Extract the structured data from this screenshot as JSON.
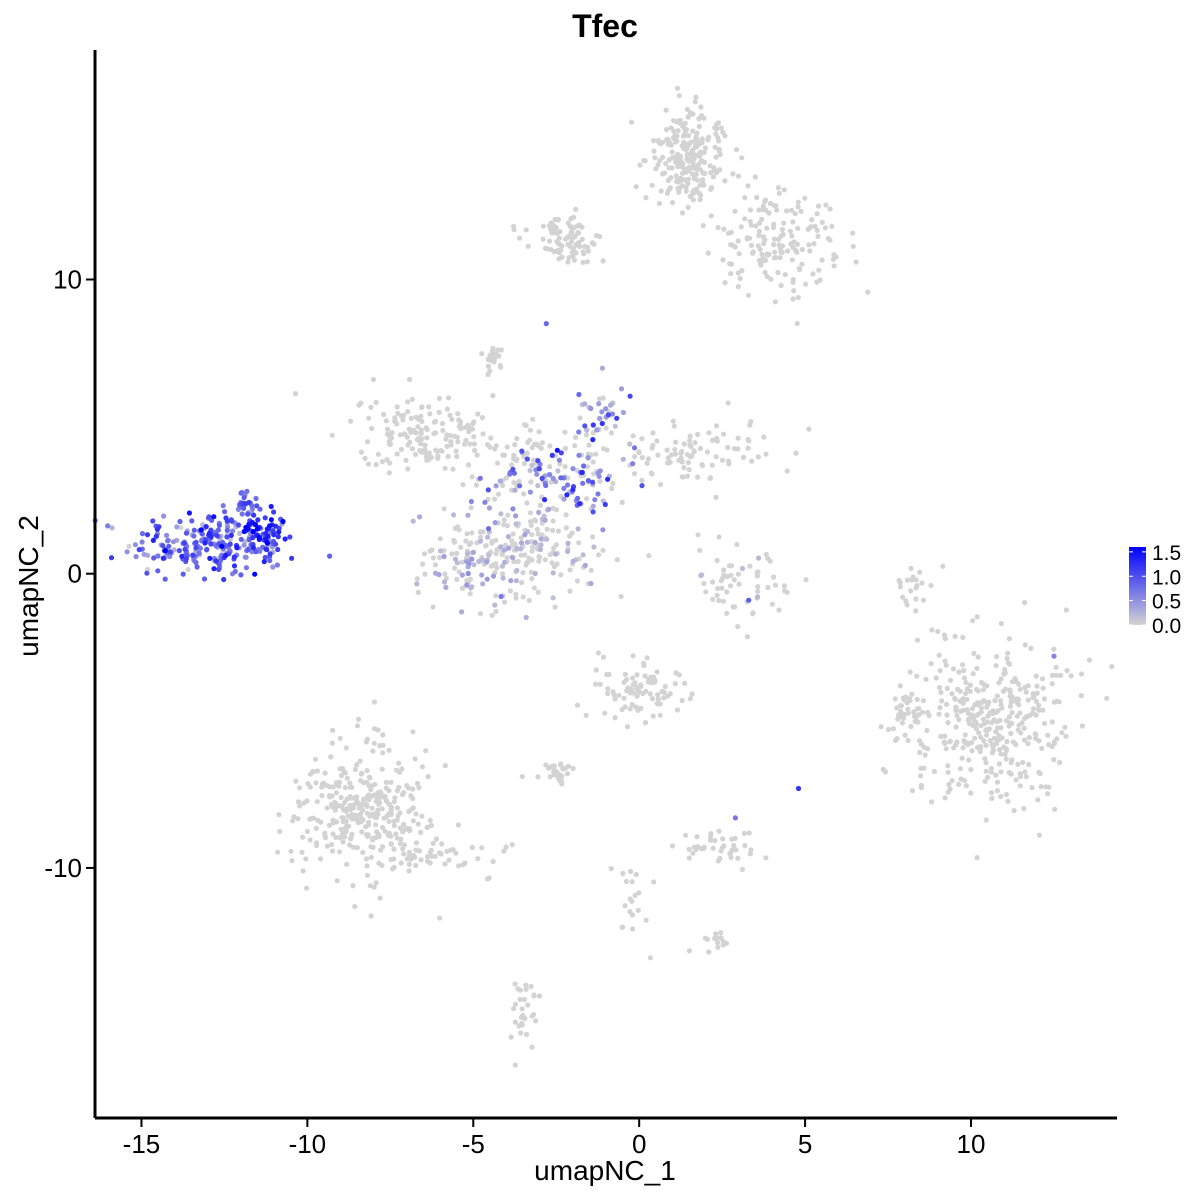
{
  "chart_data": {
    "type": "scatter",
    "title": "Tfec",
    "xlabel": "umapNC_1",
    "ylabel": "umapNC_2",
    "xlim": [
      -16.4,
      14.4
    ],
    "ylim": [
      -18.5,
      17.8
    ],
    "x_ticks": [
      -15,
      -10,
      -5,
      0,
      5,
      10
    ],
    "x_tick_labels": [
      "-15",
      "-10",
      "-5",
      "0",
      "5",
      "10"
    ],
    "y_ticks": [
      -10,
      0,
      10
    ],
    "y_tick_labels": [
      "-10",
      "0",
      "10"
    ],
    "grid": false,
    "legend": {
      "position": "right",
      "type": "colorbar",
      "min": 0.0,
      "max": 1.6,
      "breaks": [
        0.0,
        0.5,
        1.0,
        1.5
      ],
      "break_labels": [
        "0.0",
        "0.5",
        "1.0",
        "1.5"
      ],
      "low_color": "#d3d3d3",
      "high_color": "#0000ff"
    },
    "clusters": [
      {
        "id": "c1",
        "n": 260,
        "cx": -12.8,
        "cy": 1.0,
        "sx": 1.25,
        "sy": 0.55,
        "expr": 0.75,
        "expr_sd": 0.35
      },
      {
        "id": "c1b",
        "n": 40,
        "cx": -11.5,
        "cy": 1.4,
        "sx": 0.35,
        "sy": 0.25,
        "expr": 1.35,
        "expr_sd": 0.2
      },
      {
        "id": "c1c",
        "n": 25,
        "cx": -11.8,
        "cy": 2.3,
        "sx": 0.25,
        "sy": 0.25,
        "expr": 0.9,
        "expr_sd": 0.3
      },
      {
        "id": "c2",
        "n": 150,
        "cx": -6.5,
        "cy": 4.8,
        "sx": 1.0,
        "sy": 0.6,
        "expr": 0,
        "expr_sd": 0
      },
      {
        "id": "c3",
        "n": 200,
        "cx": -3.5,
        "cy": 0.8,
        "sx": 1.3,
        "sy": 1.0,
        "expr": 0.05,
        "expr_sd": 0.15
      },
      {
        "id": "c3b",
        "n": 80,
        "cx": -5.0,
        "cy": 0.3,
        "sx": 0.9,
        "sy": 0.6,
        "expr": 0.1,
        "expr_sd": 0.25
      },
      {
        "id": "c4",
        "n": 110,
        "cx": -2.3,
        "cy": 3.2,
        "sx": 1.1,
        "sy": 0.7,
        "expr": 0.55,
        "expr_sd": 0.45
      },
      {
        "id": "c5",
        "n": 100,
        "cx": 1.5,
        "cy": 4.2,
        "sx": 1.4,
        "sy": 0.5,
        "expr": 0,
        "expr_sd": 0
      },
      {
        "id": "c5b",
        "n": 40,
        "cx": -1.2,
        "cy": 5.3,
        "sx": 0.4,
        "sy": 0.7,
        "expr": 0.4,
        "expr_sd": 0.4
      },
      {
        "id": "c6",
        "n": 50,
        "cx": -3.5,
        "cy": 4.0,
        "sx": 0.7,
        "sy": 0.7,
        "expr": 0,
        "expr_sd": 0
      },
      {
        "id": "c7",
        "n": 220,
        "cx": 1.5,
        "cy": 14.2,
        "sx": 0.6,
        "sy": 0.8,
        "expr": 0,
        "expr_sd": 0
      },
      {
        "id": "c7b",
        "n": 160,
        "cx": 4.3,
        "cy": 11.2,
        "sx": 0.9,
        "sy": 0.9,
        "expr": 0,
        "expr_sd": 0
      },
      {
        "id": "c7c",
        "n": 90,
        "cx": -2.2,
        "cy": 11.4,
        "sx": 0.6,
        "sy": 0.4,
        "expr": 0,
        "expr_sd": 0
      },
      {
        "id": "c8",
        "n": 60,
        "cx": 3.2,
        "cy": -0.4,
        "sx": 0.7,
        "sy": 0.6,
        "expr": 0.01,
        "expr_sd": 0.1
      },
      {
        "id": "c9",
        "n": 380,
        "cx": 10.6,
        "cy": -5.0,
        "sx": 1.25,
        "sy": 1.45,
        "expr": 0,
        "expr_sd": 0
      },
      {
        "id": "c10",
        "n": 320,
        "cx": -8.4,
        "cy": -8.0,
        "sx": 1.0,
        "sy": 1.2,
        "expr": 0,
        "expr_sd": 0
      },
      {
        "id": "c10b",
        "n": 60,
        "cx": -6.3,
        "cy": -9.5,
        "sx": 1.1,
        "sy": 0.4,
        "expr": 0,
        "expr_sd": 0
      },
      {
        "id": "c11",
        "n": 90,
        "cx": 0.0,
        "cy": -4.0,
        "sx": 0.6,
        "sy": 0.55,
        "expr": 0,
        "expr_sd": 0
      },
      {
        "id": "c12",
        "n": 40,
        "cx": 2.4,
        "cy": -9.3,
        "sx": 0.5,
        "sy": 0.3,
        "expr": 0,
        "expr_sd": 0
      },
      {
        "id": "c13",
        "n": 30,
        "cx": -2.5,
        "cy": -6.8,
        "sx": 0.3,
        "sy": 0.2,
        "expr": 0,
        "expr_sd": 0
      },
      {
        "id": "c14",
        "n": 30,
        "cx": -3.5,
        "cy": -14.9,
        "sx": 0.2,
        "sy": 0.6,
        "expr": 0,
        "expr_sd": 0
      },
      {
        "id": "c15",
        "n": 30,
        "cx": 8.0,
        "cy": -4.7,
        "sx": 0.2,
        "sy": 0.4,
        "expr": 0,
        "expr_sd": 0
      },
      {
        "id": "c16",
        "n": 20,
        "cx": 8.2,
        "cy": -0.4,
        "sx": 0.2,
        "sy": 0.5,
        "expr": 0,
        "expr_sd": 0
      },
      {
        "id": "c17",
        "n": 20,
        "cx": -4.4,
        "cy": 7.3,
        "sx": 0.15,
        "sy": 0.2,
        "expr": 0,
        "expr_sd": 0
      },
      {
        "id": "c18",
        "n": 20,
        "cx": -0.2,
        "cy": -11.2,
        "sx": 0.3,
        "sy": 0.8,
        "expr": 0,
        "expr_sd": 0
      },
      {
        "id": "c19",
        "n": 15,
        "cx": 2.3,
        "cy": -12.5,
        "sx": 0.3,
        "sy": 0.2,
        "expr": 0,
        "expr_sd": 0
      }
    ],
    "highlighted_points": [
      {
        "x": -2.8,
        "y": 8.5,
        "value": 0.8
      },
      {
        "x": 3.3,
        "y": -0.9,
        "value": 0.9
      },
      {
        "x": 4.8,
        "y": -7.3,
        "value": 1.2
      },
      {
        "x": 12.5,
        "y": -2.8,
        "value": 0.6
      },
      {
        "x": 2.9,
        "y": -8.3,
        "value": 0.7
      }
    ]
  }
}
